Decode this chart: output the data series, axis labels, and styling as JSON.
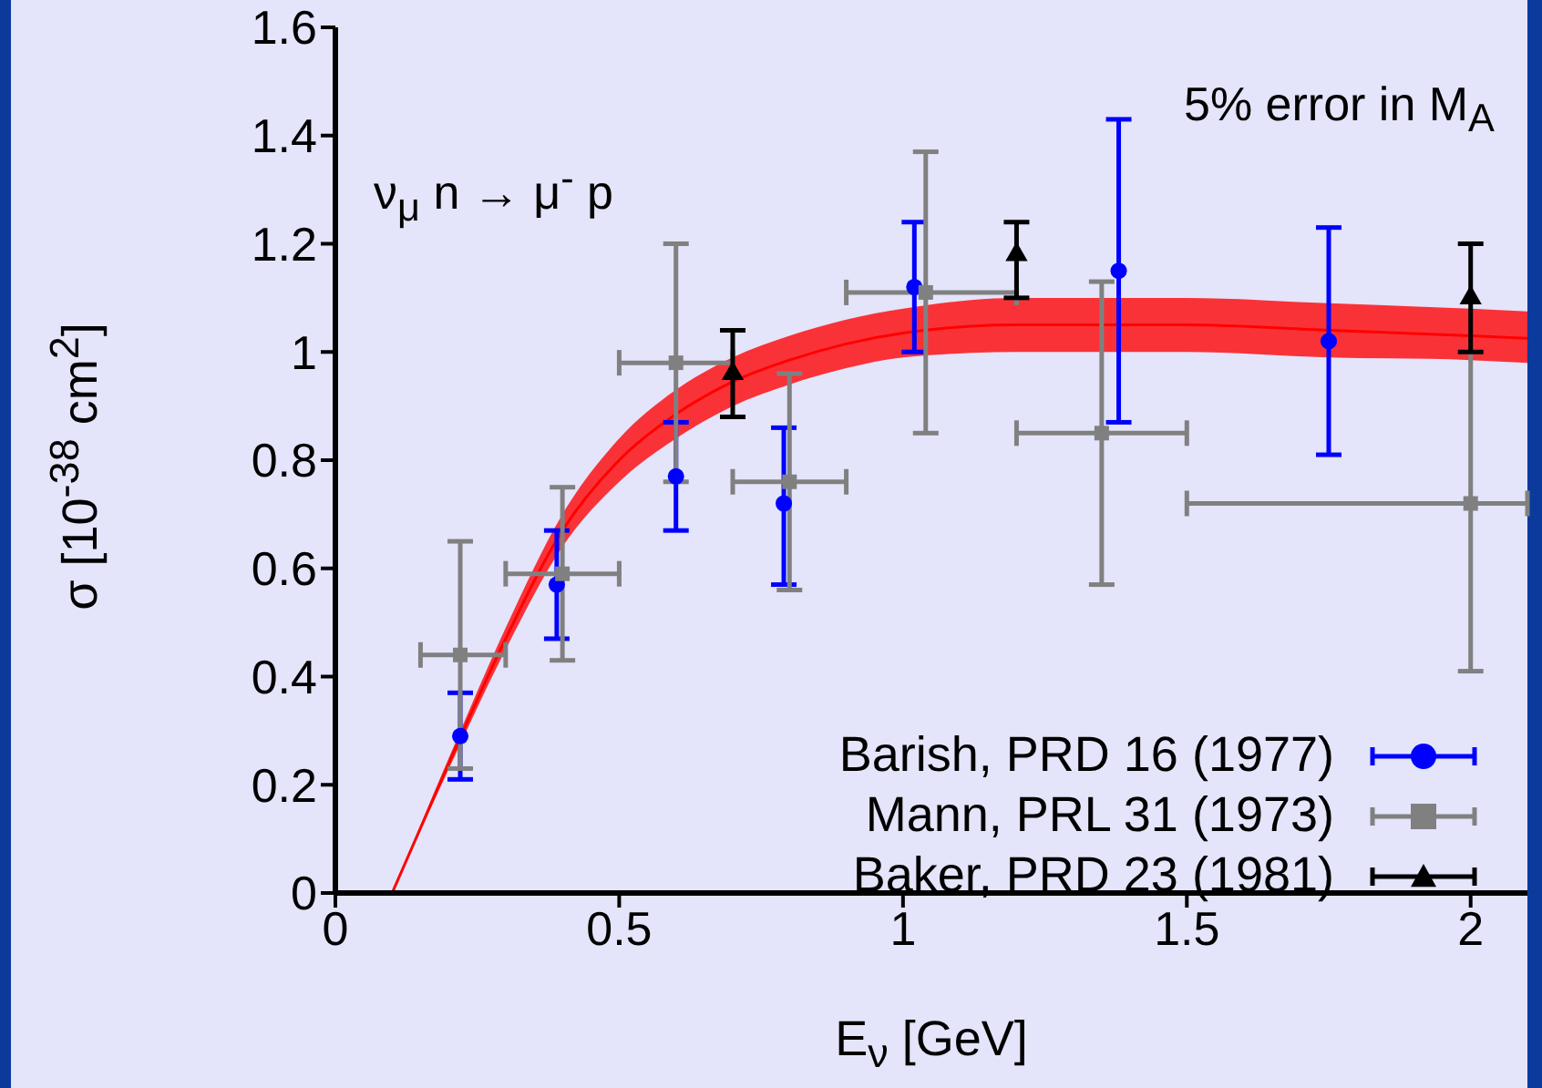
{
  "chart_data": {
    "type": "scatter",
    "xlabel": "E$_{ν}$ [GeV]",
    "ylabel": "σ [10$^{-38}$ cm$^{2}$]",
    "annotations": [
      "ν$_{μ}$ n → μ$^{-}$ p",
      "5% error in M$_{A}$"
    ],
    "xlim": [
      0,
      2.1
    ],
    "xticks": [
      0,
      0.5,
      1,
      1.5,
      2
    ],
    "ylim": [
      0,
      1.6
    ],
    "yticks": [
      0,
      0.2,
      0.4,
      0.6,
      0.8,
      1,
      1.2,
      1.4,
      1.6
    ],
    "grid": false,
    "legend": "bottom right",
    "series": [
      {
        "type": "line",
        "color": "#ff0000",
        "x": [
          0.1,
          0.2,
          0.3,
          0.4,
          0.5,
          0.6,
          0.7,
          0.8,
          0.9,
          1.0,
          1.2,
          1.5,
          1.75,
          2.0,
          2.1
        ],
        "values": [
          0,
          0.24,
          0.47,
          0.67,
          0.8,
          0.885,
          0.945,
          0.985,
          1.015,
          1.035,
          1.05,
          1.05,
          1.04,
          1.03,
          1.025
        ],
        "lower": [
          0,
          0.23,
          0.45,
          0.64,
          0.76,
          0.84,
          0.9,
          0.94,
          0.97,
          0.99,
          1.0,
          1.0,
          0.99,
          0.985,
          0.98
        ],
        "upper": [
          0,
          0.25,
          0.49,
          0.7,
          0.84,
          0.93,
          0.99,
          1.03,
          1.06,
          1.08,
          1.1,
          1.1,
          1.09,
          1.08,
          1.075
        ]
      },
      {
        "type": "scatter",
        "name": "Barish, PRD 16 (1977)",
        "color": "#0000ff",
        "marker": "circle",
        "x": [
          0.22,
          0.39,
          0.6,
          0.79,
          1.02,
          1.38,
          1.75
        ],
        "values": [
          0.29,
          0.57,
          0.77,
          0.72,
          1.12,
          1.15,
          1.02
        ],
        "errors": [
          [
            0.21,
            0.37
          ],
          [
            0.47,
            0.67
          ],
          [
            0.67,
            0.87
          ],
          [
            0.57,
            0.86
          ],
          [
            1.0,
            1.24
          ],
          [
            0.87,
            1.43
          ],
          [
            0.81,
            1.23
          ]
        ]
      },
      {
        "type": "scatter",
        "name": "Mann, PRL 31 (1973)",
        "color": "#808080",
        "marker": "square",
        "x": [
          0.22,
          0.4,
          0.6,
          0.8,
          1.04,
          1.35,
          2.0
        ],
        "values": [
          0.44,
          0.59,
          0.98,
          0.76,
          1.11,
          0.85,
          0.72
        ],
        "errors": [
          [
            0.23,
            0.65
          ],
          [
            0.43,
            0.75
          ],
          [
            0.76,
            1.2
          ],
          [
            0.56,
            0.96
          ],
          [
            0.85,
            1.37
          ],
          [
            0.57,
            1.13
          ],
          [
            0.41,
            1.0
          ]
        ],
        "xerrors": [
          [
            0.15,
            0.3
          ],
          [
            0.3,
            0.5
          ],
          [
            0.5,
            0.7
          ],
          [
            0.7,
            0.9
          ],
          [
            0.9,
            1.2
          ],
          [
            1.2,
            1.5
          ],
          [
            1.5,
            2.1
          ]
        ]
      },
      {
        "type": "scatter",
        "name": "Baker, PRD 23 (1981)",
        "color": "#000000",
        "marker": "triangle",
        "x": [
          0.7,
          1.2,
          2.0
        ],
        "values": [
          0.96,
          1.18,
          1.1
        ],
        "errors": [
          [
            0.88,
            1.04
          ],
          [
            1.1,
            1.24
          ],
          [
            1.0,
            1.2
          ]
        ]
      }
    ]
  }
}
